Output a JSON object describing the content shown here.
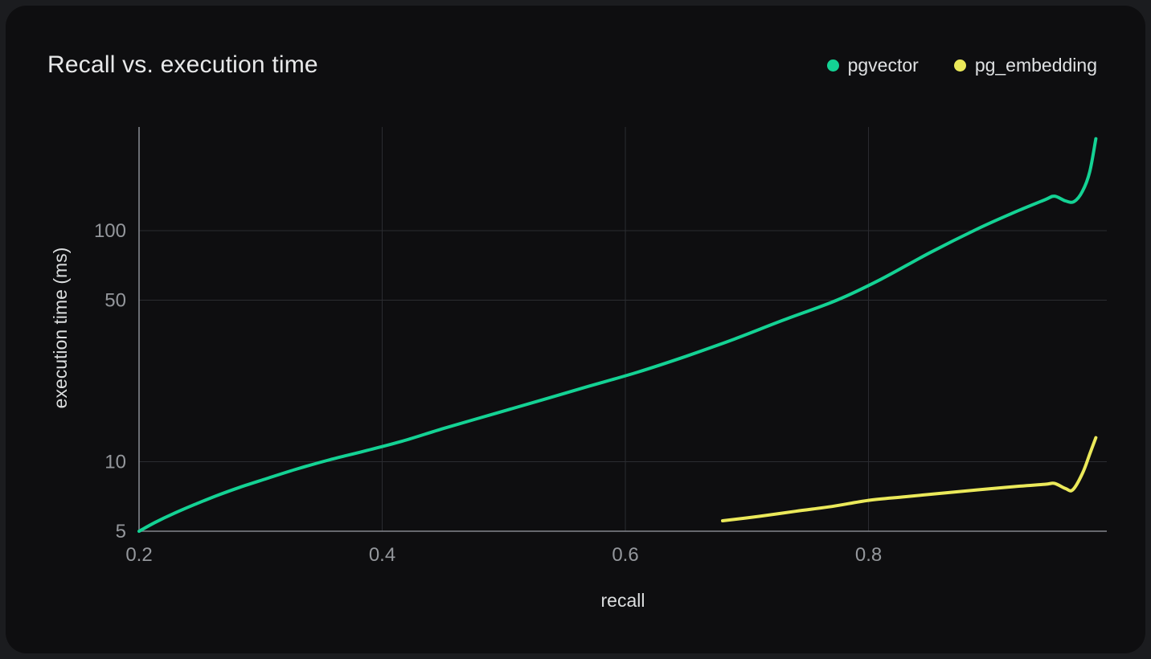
{
  "header": {
    "title": "Recall vs. execution time",
    "legend": [
      {
        "label": "pgvector",
        "color": "#14d294"
      },
      {
        "label": "pg_embedding",
        "color": "#ebe95a"
      }
    ]
  },
  "axes": {
    "x_title": "recall",
    "y_title": "execution time (ms)"
  },
  "colors": {
    "card_background": "#0e0e10",
    "page_background": "#1b1c1f",
    "gridline": "#2b2c31",
    "axis_line": "#83868e",
    "tick_text": "#94979c",
    "title_text": "#e8e9ea"
  },
  "chart_data": {
    "type": "line",
    "title": "Recall vs. execution time",
    "xlabel": "recall",
    "ylabel": "execution time (ms)",
    "x_scale": "linear",
    "y_scale": "log",
    "xlim": [
      0.2,
      0.996
    ],
    "ylim": [
      5,
      281
    ],
    "x_ticks": [
      0.2,
      0.4,
      0.6,
      0.8
    ],
    "y_ticks": [
      5,
      10,
      50,
      100
    ],
    "grid_x": [
      0.4,
      0.6,
      0.8
    ],
    "grid_y": [
      10,
      50,
      100
    ],
    "grid": true,
    "legend_position": "top-right",
    "series": [
      {
        "name": "pgvector",
        "color": "#14d294",
        "points": [
          [
            0.2,
            5.0
          ],
          [
            0.213,
            5.45
          ],
          [
            0.228,
            5.95
          ],
          [
            0.245,
            6.5
          ],
          [
            0.263,
            7.1
          ],
          [
            0.283,
            7.75
          ],
          [
            0.305,
            8.45
          ],
          [
            0.33,
            9.3
          ],
          [
            0.357,
            10.2
          ],
          [
            0.385,
            11.1
          ],
          [
            0.415,
            12.2
          ],
          [
            0.45,
            13.9
          ],
          [
            0.49,
            16.0
          ],
          [
            0.53,
            18.4
          ],
          [
            0.57,
            21.2
          ],
          [
            0.61,
            24.4
          ],
          [
            0.65,
            28.6
          ],
          [
            0.69,
            34.0
          ],
          [
            0.73,
            41.0
          ],
          [
            0.774,
            50.0
          ],
          [
            0.81,
            61.5
          ],
          [
            0.85,
            80.0
          ],
          [
            0.89,
            102.0
          ],
          [
            0.92,
            120.0
          ],
          [
            0.945,
            136.0
          ],
          [
            0.953,
            141.0
          ],
          [
            0.962,
            134.5
          ],
          [
            0.969,
            133.5
          ],
          [
            0.976,
            148.0
          ],
          [
            0.982,
            180.0
          ],
          [
            0.987,
            250.0
          ]
        ]
      },
      {
        "name": "pg_embedding",
        "color": "#ebe95a",
        "points": [
          [
            0.68,
            5.55
          ],
          [
            0.71,
            5.8
          ],
          [
            0.74,
            6.1
          ],
          [
            0.77,
            6.4
          ],
          [
            0.8,
            6.8
          ],
          [
            0.83,
            7.05
          ],
          [
            0.86,
            7.3
          ],
          [
            0.89,
            7.55
          ],
          [
            0.92,
            7.8
          ],
          [
            0.945,
            7.98
          ],
          [
            0.953,
            8.05
          ],
          [
            0.962,
            7.65
          ],
          [
            0.968,
            7.55
          ],
          [
            0.976,
            8.9
          ],
          [
            0.982,
            10.8
          ],
          [
            0.987,
            12.7
          ]
        ]
      }
    ]
  }
}
